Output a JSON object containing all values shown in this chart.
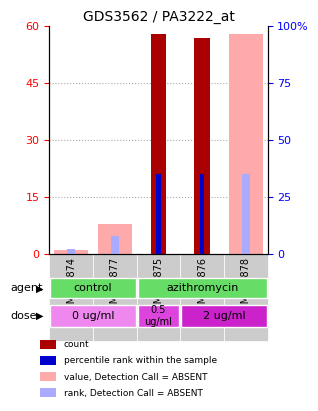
{
  "title": "GDS3562 / PA3222_at",
  "samples": [
    "GSM319874",
    "GSM319877",
    "GSM319875",
    "GSM319876",
    "GSM319878"
  ],
  "count_values": [
    0,
    0,
    58,
    57,
    0
  ],
  "rank_values": [
    0,
    0,
    35,
    35,
    0
  ],
  "absent_value_values": [
    1,
    8,
    0,
    0,
    58
  ],
  "absent_rank_values": [
    2,
    8,
    0,
    0,
    35
  ],
  "left_ylim": [
    0,
    60
  ],
  "right_ylim": [
    0,
    100
  ],
  "left_yticks": [
    0,
    15,
    30,
    45,
    60
  ],
  "right_yticks": [
    0,
    25,
    50,
    75,
    100
  ],
  "right_yticklabels": [
    "0",
    "25",
    "50",
    "75",
    "100%"
  ],
  "color_count": "#aa0000",
  "color_rank": "#0000cc",
  "color_absent_value": "#ffaaaa",
  "color_absent_rank": "#aaaaff",
  "agent_color": "#66dd66",
  "dose_colors": [
    "#ee88ee",
    "#dd44dd",
    "#cc22cc"
  ],
  "bar_width": 0.35,
  "grid_color": "#aaaaaa",
  "sample_bg": "#cccccc",
  "legend_items": [
    {
      "label": "count",
      "color": "#aa0000"
    },
    {
      "label": "percentile rank within the sample",
      "color": "#0000cc"
    },
    {
      "label": "value, Detection Call = ABSENT",
      "color": "#ffaaaa"
    },
    {
      "label": "rank, Detection Call = ABSENT",
      "color": "#aaaaff"
    }
  ]
}
